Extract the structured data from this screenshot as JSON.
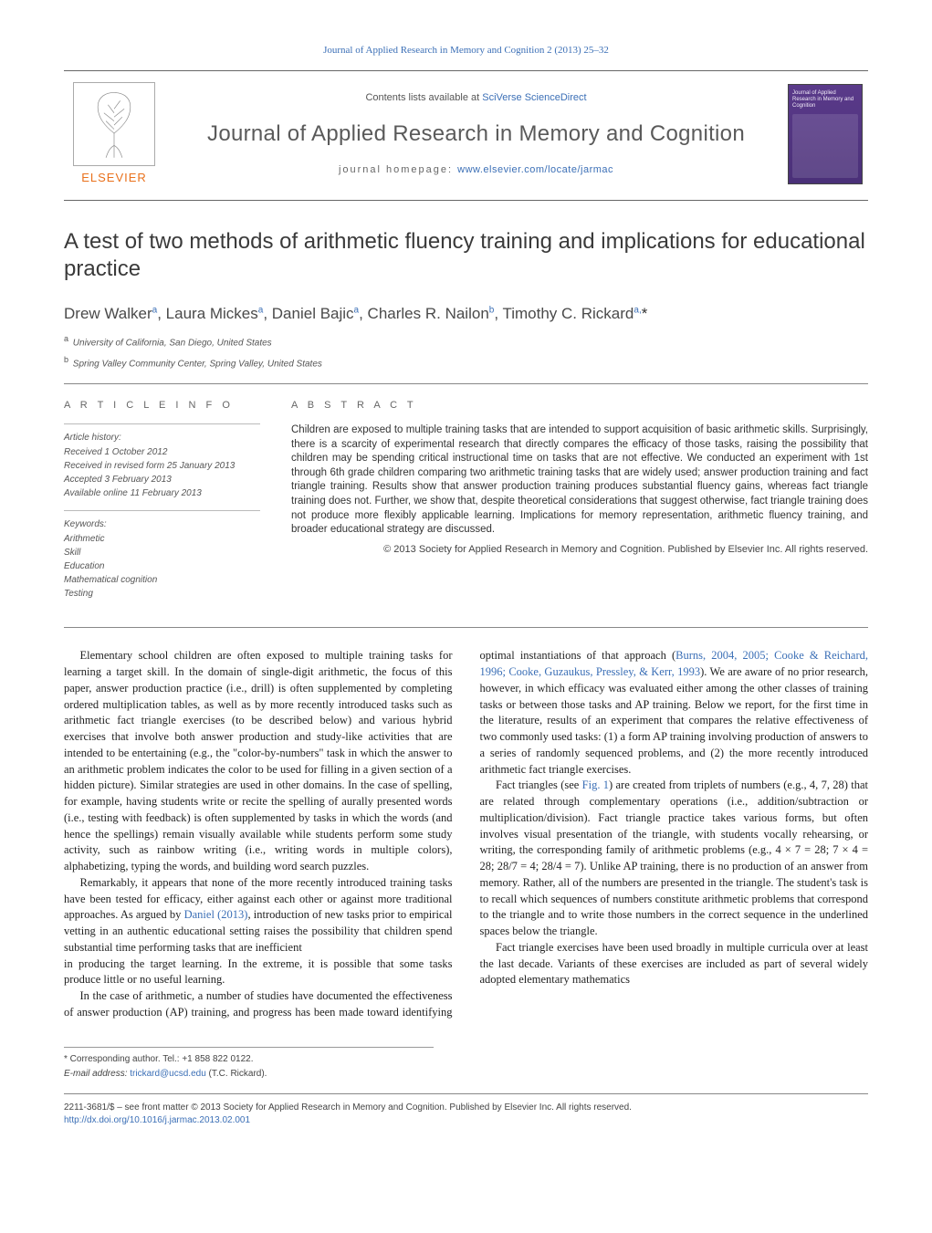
{
  "top_link": {
    "text": "Journal of Applied Research in Memory and Cognition 2 (2013) 25–32"
  },
  "header": {
    "publisher": "ELSEVIER",
    "contents_prefix": "Contents lists available at ",
    "contents_link": "SciVerse ScienceDirect",
    "journal_title": "Journal of Applied Research in Memory and Cognition",
    "homepage_prefix": "journal homepage: ",
    "homepage_url": "www.elsevier.com/locate/jarmac",
    "cover_text": "Journal of Applied Research in Memory and Cognition"
  },
  "article": {
    "title": "A test of two methods of arithmetic fluency training and implications for educational practice",
    "authors_html": "Drew Walker<sup>a</sup>, Laura Mickes<sup>a</sup>, Daniel Bajic<sup>a</sup>, Charles R. Nailon<sup>b</sup>, Timothy C. Rickard<sup>a,</sup><span class='star'>*</span>",
    "affiliations": [
      {
        "sup": "a",
        "text": "University of California, San Diego, United States"
      },
      {
        "sup": "b",
        "text": "Spring Valley Community Center, Spring Valley, United States"
      }
    ]
  },
  "info": {
    "heading": "A R T I C L E   I N F O",
    "history_label": "Article history:",
    "history": [
      "Received 1 October 2012",
      "Received in revised form 25 January 2013",
      "Accepted 3 February 2013",
      "Available online 11 February 2013"
    ],
    "keywords_label": "Keywords:",
    "keywords": [
      "Arithmetic",
      "Skill",
      "Education",
      "Mathematical cognition",
      "Testing"
    ]
  },
  "abstract": {
    "heading": "A B S T R A C T",
    "text": "Children are exposed to multiple training tasks that are intended to support acquisition of basic arithmetic skills. Surprisingly, there is a scarcity of experimental research that directly compares the efficacy of those tasks, raising the possibility that children may be spending critical instructional time on tasks that are not effective. We conducted an experiment with 1st through 6th grade children comparing two arithmetic training tasks that are widely used; answer production training and fact triangle training. Results show that answer production training produces substantial fluency gains, whereas fact triangle training does not. Further, we show that, despite theoretical considerations that suggest otherwise, fact triangle training does not produce more flexibly applicable learning. Implications for memory representation, arithmetic fluency training, and broader educational strategy are discussed.",
    "copyright": "© 2013 Society for Applied Research in Memory and Cognition. Published by Elsevier Inc. All rights reserved."
  },
  "body": {
    "p1": "Elementary school children are often exposed to multiple training tasks for learning a target skill. In the domain of single-digit arithmetic, the focus of this paper, answer production practice (i.e., drill) is often supplemented by completing ordered multiplication tables, as well as by more recently introduced tasks such as arithmetic fact triangle exercises (to be described below) and various hybrid exercises that involve both answer production and study-like activities that are intended to be entertaining (e.g., the \"color-by-numbers\" task in which the answer to an arithmetic problem indicates the color to be used for filling in a given section of a hidden picture). Similar strategies are used in other domains. In the case of spelling, for example, having students write or recite the spelling of aurally presented words (i.e., testing with feedback) is often supplemented by tasks in which the words (and hence the spellings) remain visually available while students perform some study activity, such as rainbow writing (i.e., writing words in multiple colors), alphabetizing, typing the words, and building word search puzzles.",
    "p2_pre": "Remarkably, it appears that none of the more recently introduced training tasks have been tested for efficacy, either against each other or against more traditional approaches. As argued by ",
    "p2_link": "Daniel (2013)",
    "p2_post": ", introduction of new tasks prior to empirical vetting in an authentic educational setting raises the possibility that children spend substantial time performing tasks that are inefficient",
    "p3": "in producing the target learning. In the extreme, it is possible that some tasks produce little or no useful learning.",
    "p4_pre": "In the case of arithmetic, a number of studies have documented the effectiveness of answer production (AP) training, and progress has been made toward identifying optimal instantiations of that approach (",
    "p4_link": "Burns, 2004, 2005; Cooke & Reichard, 1996; Cooke, Guzaukus, Pressley, & Kerr, 1993",
    "p4_post": "). We are aware of no prior research, however, in which efficacy was evaluated either among the other classes of training tasks or between those tasks and AP training. Below we report, for the first time in the literature, results of an experiment that compares the relative effectiveness of two commonly used tasks: (1) a form AP training involving production of answers to a series of randomly sequenced problems, and (2) the more recently introduced arithmetic fact triangle exercises.",
    "p5_pre": "Fact triangles (see ",
    "p5_link": "Fig. 1",
    "p5_post": ") are created from triplets of numbers (e.g., 4, 7, 28) that are related through complementary operations (i.e., addition/subtraction or multiplication/division). Fact triangle practice takes various forms, but often involves visual presentation of the triangle, with students vocally rehearsing, or writing, the corresponding family of arithmetic problems (e.g., 4 × 7 = 28; 7 × 4 = 28; 28/7 = 4; 28/4 = 7). Unlike AP training, there is no production of an answer from memory. Rather, all of the numbers are presented in the triangle. The student's task is to recall which sequences of numbers constitute arithmetic problems that correspond to the triangle and to write those numbers in the correct sequence in the underlined spaces below the triangle.",
    "p6": "Fact triangle exercises have been used broadly in multiple curricula over at least the last decade. Variants of these exercises are included as part of several widely adopted elementary mathematics"
  },
  "footnotes": {
    "corr": "* Corresponding author. Tel.: +1 858 822 0122.",
    "email_label": "E-mail address: ",
    "email": "trickard@ucsd.edu",
    "email_suffix": " (T.C. Rickard)."
  },
  "bottom": {
    "line1": "2211-3681/$ – see front matter © 2013 Society for Applied Research in Memory and Cognition. Published by Elsevier Inc. All rights reserved.",
    "doi_url": "http://dx.doi.org/10.1016/j.jarmac.2013.02.001"
  },
  "colors": {
    "link": "#3b6fb6",
    "text": "#222222",
    "orange": "#e9711c",
    "cover_bg": "#4a3078"
  }
}
